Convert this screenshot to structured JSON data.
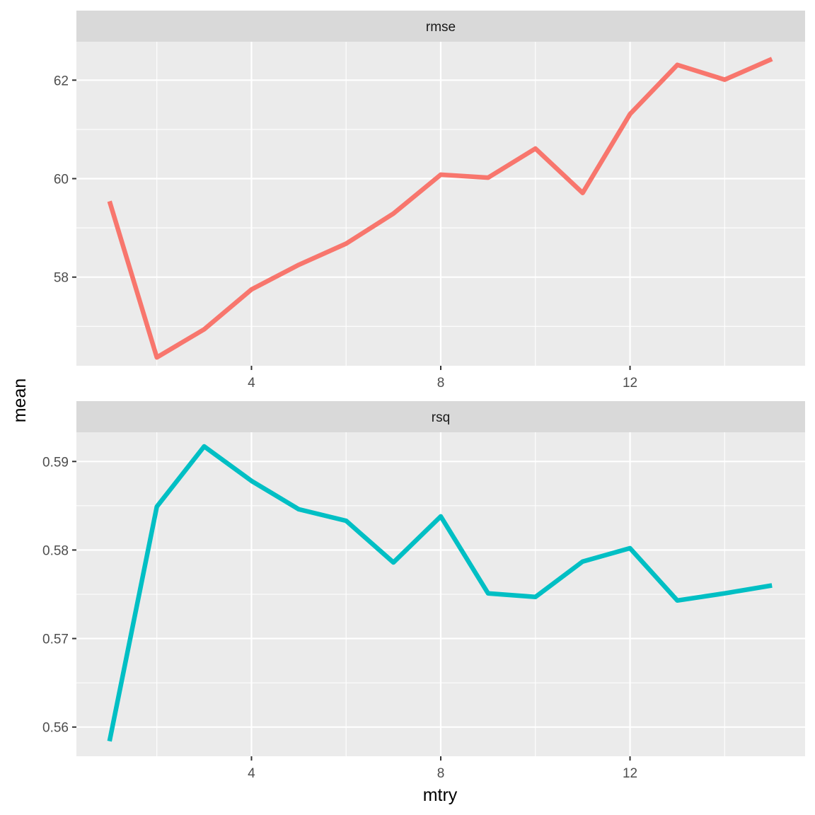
{
  "chart_data": {
    "type": "line",
    "xlabel": "mtry",
    "ylabel": "mean",
    "x_ticks": [
      4,
      8,
      12
    ],
    "xlim": [
      0.3,
      15.7
    ],
    "grid": true,
    "facets": [
      {
        "name": "rmse",
        "color": "#F8766D",
        "y_ticks": [
          58,
          60,
          62
        ],
        "y_tick_labels": [
          "58",
          "60",
          "62"
        ],
        "ylim": [
          56.2,
          62.78
        ],
        "x": [
          1,
          2,
          3,
          4,
          5,
          6,
          7,
          8,
          9,
          10,
          11,
          12,
          13,
          14,
          15
        ],
        "values": [
          59.54,
          56.37,
          56.94,
          57.75,
          58.25,
          58.68,
          59.29,
          60.08,
          60.02,
          60.61,
          59.71,
          61.31,
          62.31,
          62.01,
          62.43
        ]
      },
      {
        "name": "rsq",
        "color": "#00BFC4",
        "y_ticks": [
          0.56,
          0.57,
          0.58,
          0.59
        ],
        "y_tick_labels": [
          "0.56",
          "0.57",
          "0.58",
          "0.59"
        ],
        "ylim": [
          0.5567,
          0.5933
        ],
        "x": [
          1,
          2,
          3,
          4,
          5,
          6,
          7,
          8,
          9,
          10,
          11,
          12,
          13,
          14,
          15
        ],
        "values": [
          0.5584,
          0.5849,
          0.5917,
          0.5878,
          0.5846,
          0.5833,
          0.5786,
          0.5838,
          0.5751,
          0.5747,
          0.5787,
          0.5802,
          0.5743,
          0.5751,
          0.576
        ]
      }
    ]
  }
}
